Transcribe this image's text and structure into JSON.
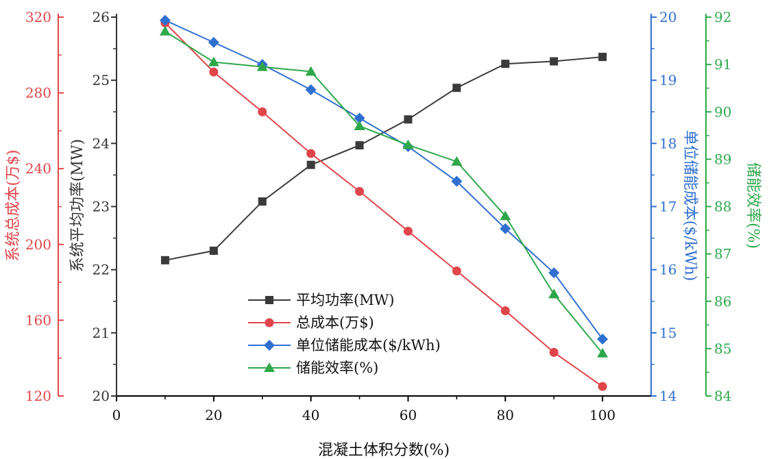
{
  "chart_data": {
    "type": "line",
    "x": [
      10,
      20,
      30,
      40,
      50,
      60,
      70,
      80,
      90,
      100
    ],
    "xlabel": "混凝土体积分数(%)",
    "xlim": [
      0,
      110
    ],
    "x_ticks": [
      "0",
      "20",
      "40",
      "60",
      "80",
      "100"
    ],
    "axes": [
      {
        "id": "cost",
        "side": "left-outer",
        "label": "系统总成本(万$)",
        "color": "#e0454a",
        "ylim": [
          120,
          320
        ],
        "ticks": [
          "120",
          "160",
          "200",
          "240",
          "280",
          "320"
        ]
      },
      {
        "id": "power",
        "side": "left-inner",
        "label": "系统平均功率(MW)",
        "color": "#333333",
        "ylim": [
          20,
          26
        ],
        "ticks": [
          "20",
          "21",
          "22",
          "23",
          "24",
          "25",
          "26"
        ]
      },
      {
        "id": "unit_cost",
        "side": "right-inner",
        "label": "单位储能成本($/kWh)",
        "color": "#2f6fd0",
        "ylim": [
          14,
          20
        ],
        "ticks": [
          "14",
          "15",
          "16",
          "17",
          "18",
          "19",
          "20"
        ]
      },
      {
        "id": "efficiency",
        "side": "right-outer",
        "label": "储能效率(%)",
        "color": "#2ea84a",
        "ylim": [
          84,
          92
        ],
        "ticks": [
          "84",
          "85",
          "86",
          "87",
          "88",
          "89",
          "90",
          "91",
          "92"
        ]
      }
    ],
    "series": [
      {
        "name": "平均功率(MW)",
        "axis": "power",
        "marker": "square",
        "color": "#3a3a3a",
        "values": [
          22.15,
          22.3,
          23.08,
          23.66,
          23.97,
          24.38,
          24.88,
          25.26,
          25.3,
          25.37
        ]
      },
      {
        "name": "总成本(万$)",
        "axis": "cost",
        "marker": "circle",
        "color": "#e0454a",
        "values": [
          317,
          291,
          270,
          248,
          228,
          207,
          186,
          165,
          143,
          125
        ]
      },
      {
        "name": "单位储能成本($/kWh)",
        "axis": "unit_cost",
        "marker": "diamond",
        "color": "#2f6fd0",
        "values": [
          19.95,
          19.6,
          19.25,
          18.85,
          18.4,
          17.95,
          17.4,
          16.65,
          15.95,
          14.9
        ]
      },
      {
        "name": "储能效率(%)",
        "axis": "efficiency",
        "marker": "triangle",
        "color": "#2ea84a",
        "values": [
          91.7,
          91.05,
          90.95,
          90.85,
          89.7,
          89.3,
          88.95,
          87.8,
          86.15,
          84.9
        ]
      }
    ],
    "legend": "lower-left",
    "grid": false
  }
}
